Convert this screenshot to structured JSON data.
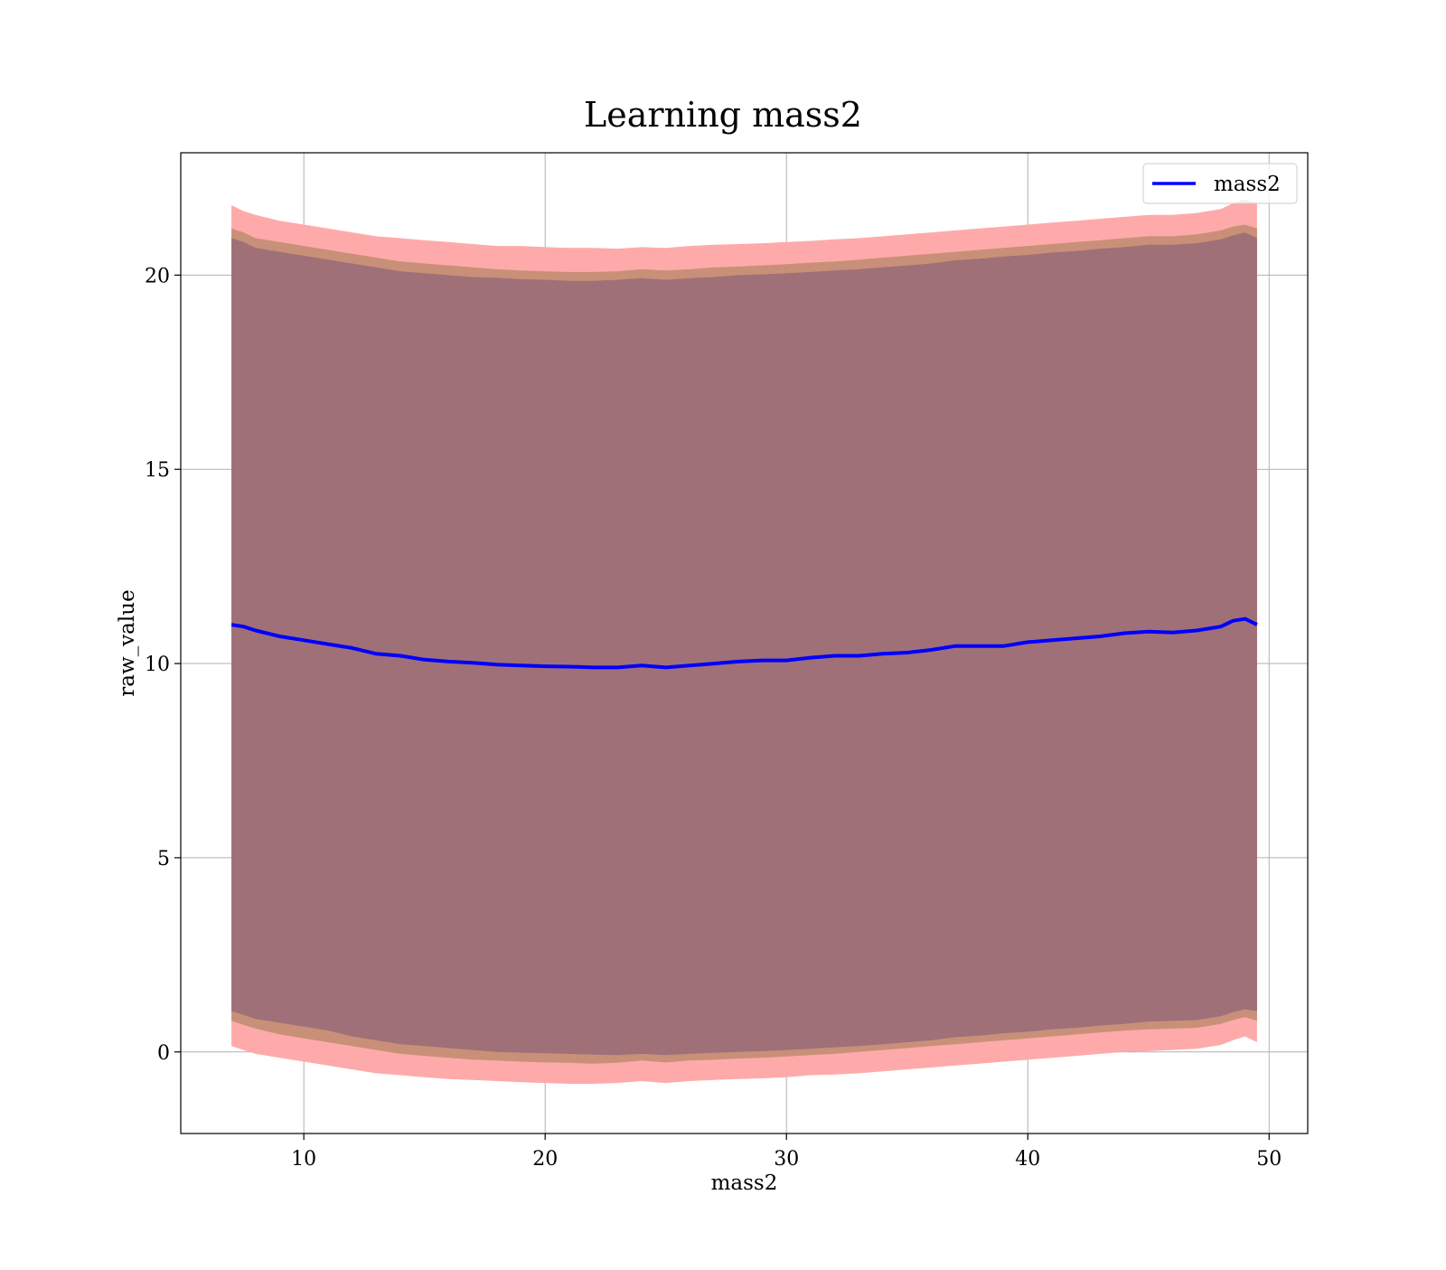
{
  "chart_data": {
    "type": "area",
    "title": "Learning mass2",
    "xlabel": "mass2",
    "ylabel": "raw_value",
    "xlim": [
      4.9,
      51.6
    ],
    "ylim": [
      -2.1,
      23.15
    ],
    "xticks": [
      10,
      20,
      30,
      40,
      50
    ],
    "yticks": [
      0,
      5,
      10,
      15,
      20
    ],
    "grid": true,
    "legend": {
      "position": "top-right",
      "entries": [
        "mass2"
      ]
    },
    "colors": {
      "mean_line": "#0000ff",
      "outer_band": "#ffaaaa",
      "middle_band": "#c89078",
      "inner_band": "#a07078",
      "grid": "#b0b0b0"
    },
    "x": [
      7.0,
      7.5,
      8.0,
      9.0,
      10.0,
      11.0,
      12.0,
      13.0,
      14.0,
      15.0,
      16.0,
      17.0,
      18.0,
      19.0,
      20.0,
      21.0,
      22.0,
      23.0,
      24.0,
      25.0,
      26.0,
      27.0,
      28.0,
      29.0,
      30.0,
      31.0,
      32.0,
      33.0,
      34.0,
      35.0,
      36.0,
      37.0,
      38.0,
      39.0,
      40.0,
      41.0,
      42.0,
      43.0,
      44.0,
      45.0,
      46.0,
      47.0,
      48.0,
      48.5,
      49.0,
      49.5
    ],
    "series": [
      {
        "name": "mass2",
        "values": [
          11.0,
          10.95,
          10.85,
          10.7,
          10.6,
          10.5,
          10.4,
          10.25,
          10.2,
          10.1,
          10.05,
          10.02,
          9.97,
          9.95,
          9.93,
          9.92,
          9.9,
          9.9,
          9.95,
          9.9,
          9.95,
          10.0,
          10.05,
          10.08,
          10.08,
          10.15,
          10.2,
          10.2,
          10.25,
          10.28,
          10.35,
          10.45,
          10.45,
          10.45,
          10.55,
          10.6,
          10.65,
          10.7,
          10.78,
          10.82,
          10.8,
          10.85,
          10.95,
          11.1,
          11.15,
          11.0
        ]
      }
    ],
    "bands": {
      "outer_upper": [
        21.8,
        21.65,
        21.55,
        21.4,
        21.3,
        21.2,
        21.1,
        21.0,
        20.95,
        20.9,
        20.85,
        20.8,
        20.75,
        20.75,
        20.72,
        20.7,
        20.7,
        20.68,
        20.72,
        20.7,
        20.75,
        20.78,
        20.8,
        20.82,
        20.85,
        20.88,
        20.92,
        20.95,
        21.0,
        21.05,
        21.1,
        21.15,
        21.2,
        21.25,
        21.3,
        21.35,
        21.4,
        21.45,
        21.5,
        21.55,
        21.55,
        21.6,
        21.7,
        21.85,
        21.95,
        21.85
      ],
      "middle_upper": [
        21.2,
        21.1,
        20.95,
        20.85,
        20.75,
        20.65,
        20.55,
        20.45,
        20.35,
        20.3,
        20.25,
        20.2,
        20.15,
        20.12,
        20.1,
        20.08,
        20.08,
        20.1,
        20.15,
        20.12,
        20.15,
        20.2,
        20.22,
        20.25,
        20.28,
        20.32,
        20.35,
        20.4,
        20.45,
        20.5,
        20.55,
        20.6,
        20.65,
        20.7,
        20.75,
        20.8,
        20.85,
        20.9,
        20.95,
        21.0,
        21.0,
        21.05,
        21.15,
        21.25,
        21.3,
        21.2
      ],
      "inner_upper": [
        20.95,
        20.85,
        20.7,
        20.6,
        20.5,
        20.4,
        20.3,
        20.2,
        20.1,
        20.05,
        20.0,
        19.95,
        19.93,
        19.9,
        19.88,
        19.85,
        19.85,
        19.88,
        19.92,
        19.88,
        19.92,
        19.95,
        20.0,
        20.02,
        20.05,
        20.08,
        20.12,
        20.15,
        20.2,
        20.25,
        20.3,
        20.38,
        20.42,
        20.48,
        20.52,
        20.58,
        20.62,
        20.68,
        20.72,
        20.78,
        20.78,
        20.82,
        20.92,
        21.02,
        21.1,
        20.95
      ],
      "inner_lower": [
        1.05,
        0.95,
        0.85,
        0.75,
        0.65,
        0.55,
        0.4,
        0.3,
        0.2,
        0.15,
        0.1,
        0.05,
        0.0,
        -0.02,
        -0.03,
        -0.05,
        -0.07,
        -0.08,
        -0.05,
        -0.08,
        -0.05,
        -0.02,
        0.0,
        0.02,
        0.05,
        0.08,
        0.12,
        0.15,
        0.2,
        0.25,
        0.3,
        0.38,
        0.42,
        0.48,
        0.52,
        0.58,
        0.62,
        0.68,
        0.72,
        0.78,
        0.8,
        0.82,
        0.92,
        1.02,
        1.1,
        1.05
      ],
      "middle_lower": [
        0.8,
        0.7,
        0.6,
        0.45,
        0.35,
        0.25,
        0.15,
        0.05,
        -0.05,
        -0.1,
        -0.15,
        -0.2,
        -0.22,
        -0.25,
        -0.27,
        -0.28,
        -0.3,
        -0.28,
        -0.22,
        -0.27,
        -0.22,
        -0.2,
        -0.17,
        -0.15,
        -0.12,
        -0.08,
        -0.05,
        0.0,
        0.05,
        0.1,
        0.15,
        0.2,
        0.25,
        0.3,
        0.35,
        0.4,
        0.45,
        0.5,
        0.55,
        0.58,
        0.6,
        0.62,
        0.72,
        0.82,
        0.9,
        0.8
      ],
      "outer_lower": [
        0.15,
        0.05,
        -0.05,
        -0.15,
        -0.25,
        -0.35,
        -0.45,
        -0.55,
        -0.6,
        -0.65,
        -0.7,
        -0.72,
        -0.75,
        -0.78,
        -0.8,
        -0.82,
        -0.82,
        -0.8,
        -0.75,
        -0.8,
        -0.75,
        -0.72,
        -0.7,
        -0.68,
        -0.65,
        -0.6,
        -0.58,
        -0.55,
        -0.5,
        -0.45,
        -0.4,
        -0.35,
        -0.3,
        -0.25,
        -0.2,
        -0.15,
        -0.1,
        -0.05,
        0.0,
        0.02,
        0.05,
        0.08,
        0.18,
        0.3,
        0.4,
        0.25
      ]
    }
  }
}
